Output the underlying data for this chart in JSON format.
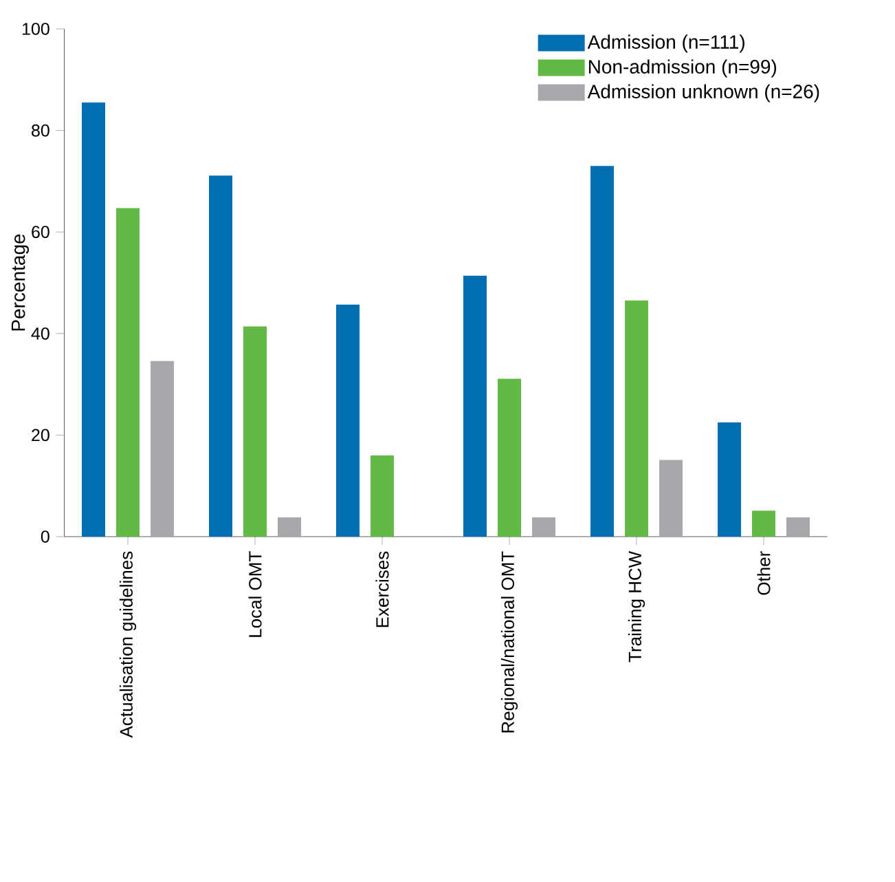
{
  "chart_data": {
    "type": "bar",
    "ylabel": "Percentage",
    "categories": [
      "Actualisation guidelines",
      "Local OMT",
      "Exercises",
      "Regional/national OMT",
      "Training HCW",
      "Other"
    ],
    "series": [
      {
        "name": "Admission (n=111)",
        "color": "#006eb0",
        "values": [
          85.5,
          71.1,
          45.7,
          51.4,
          73.0,
          22.5
        ]
      },
      {
        "name": "Non-admission (n=99)",
        "color": "#62b946",
        "values": [
          64.7,
          41.4,
          16.0,
          31.1,
          46.5,
          5.1
        ]
      },
      {
        "name": "Admission unknown (n=26)",
        "color": "#a7a8ab",
        "values": [
          34.6,
          3.8,
          0,
          3.8,
          15.1,
          3.8
        ]
      }
    ],
    "ylim": [
      0,
      100
    ],
    "yticks": [
      0,
      20,
      40,
      60,
      80,
      100
    ],
    "grid": false,
    "legend": "top right"
  }
}
